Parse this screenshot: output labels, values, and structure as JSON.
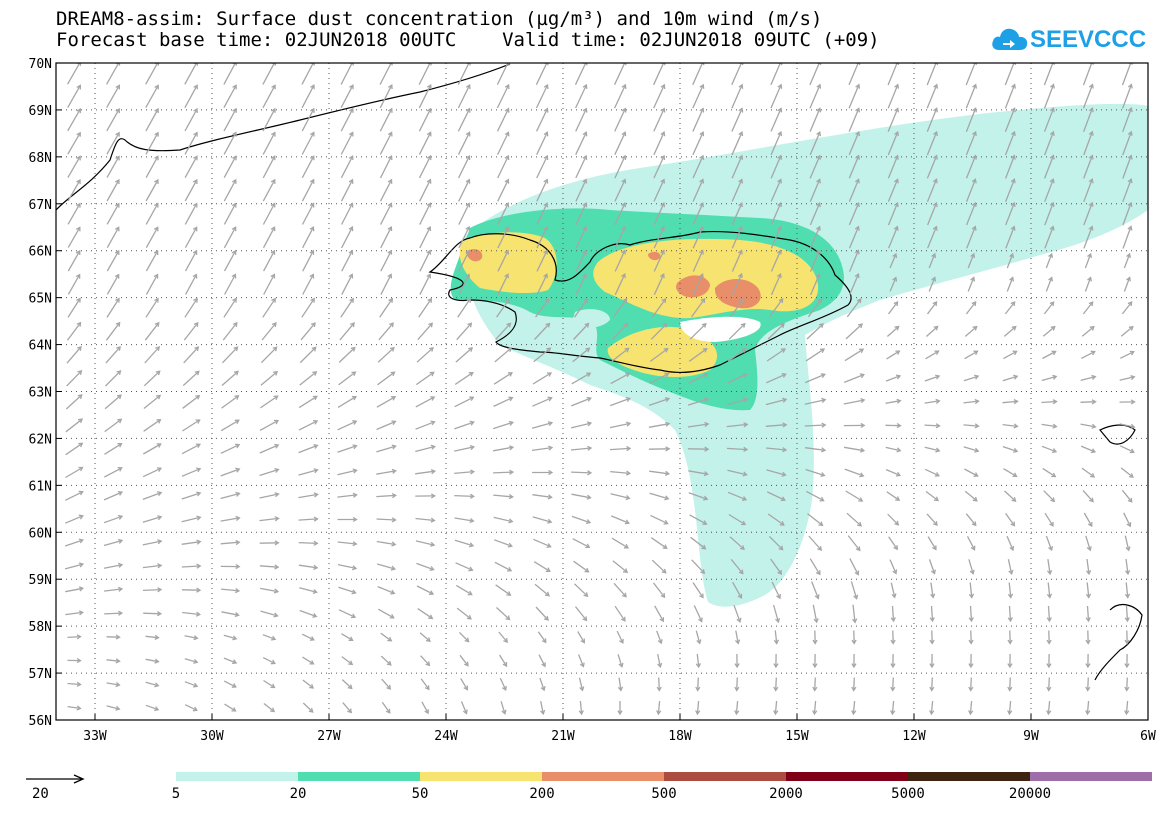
{
  "title": {
    "line1": "DREAM8-assim: Surface dust concentration (µg/m³) and 10m wind (m/s)",
    "line2": "Forecast base time: 02JUN2018 00UTC    Valid time: 02JUN2018 09UTC (+09)"
  },
  "logo": {
    "text": "SEEVCCC",
    "icon": "cloud-icon",
    "color": "#1ea0e6"
  },
  "axes": {
    "lat_labels": [
      "70N",
      "69N",
      "68N",
      "67N",
      "66N",
      "65N",
      "64N",
      "63N",
      "62N",
      "61N",
      "60N",
      "59N",
      "58N",
      "57N",
      "56N"
    ],
    "lat_values": [
      70,
      69,
      68,
      67,
      66,
      65,
      64,
      63,
      62,
      61,
      60,
      59,
      58,
      57,
      56
    ],
    "lon_labels": [
      "33W",
      "30W",
      "27W",
      "24W",
      "21W",
      "18W",
      "15W",
      "12W",
      "9W",
      "6W"
    ],
    "lon_values": [
      -33,
      -30,
      -27,
      -24,
      -21,
      -18,
      -15,
      -12,
      -9,
      -6
    ],
    "lon_range": [
      -34.0,
      -6.0
    ],
    "lat_range": [
      56.0,
      70.0
    ]
  },
  "colorbar": {
    "thresholds": [
      "5",
      "20",
      "50",
      "200",
      "500",
      "2000",
      "5000",
      "20000"
    ],
    "colors": [
      "#c2f2ea",
      "#50deb0",
      "#f7e370",
      "#e88e68",
      "#ac4c40",
      "#800018",
      "#3e2410",
      "#9e6ea8"
    ]
  },
  "wind_reference": {
    "value": "20",
    "unit": "m/s"
  }
}
